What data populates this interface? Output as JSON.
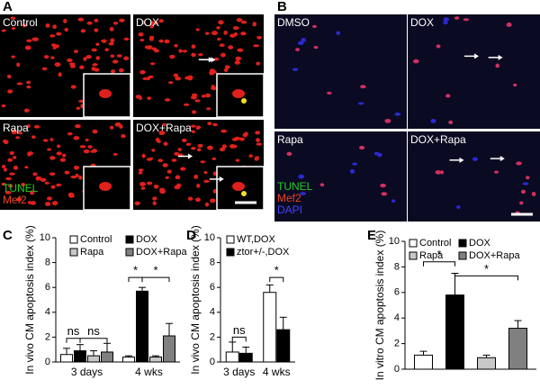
{
  "panel_labels": [
    "A",
    "B",
    "C",
    "D",
    "E"
  ],
  "images": {
    "A": {
      "tiles": [
        "Control",
        "DOX",
        "Rapa",
        "DOX+Rapa"
      ],
      "stains": [
        "TUNEL",
        "Mef2"
      ]
    },
    "B": {
      "tiles": [
        "DMSO",
        "DOX",
        "Rapa",
        "DOX+Rapa"
      ],
      "stains": [
        "TUNEL",
        "Mef2",
        "DAPI"
      ]
    }
  },
  "chart_data": [
    {
      "type": "bar",
      "ylabel": "In vivo CM apoptosis index (%)",
      "categories": [
        "3 days",
        "4 wks"
      ],
      "series": [
        {
          "name": "Control",
          "color": "#ffffff",
          "values": [
            0.6,
            0.4
          ],
          "errors": [
            0.5,
            0.1
          ]
        },
        {
          "name": "DOX",
          "color": "#000000",
          "values": [
            0.9,
            5.7
          ],
          "errors": [
            0.5,
            0.3
          ]
        },
        {
          "name": "Rapa",
          "color": "#c8c8c8",
          "values": [
            0.5,
            0.4
          ],
          "errors": [
            0.4,
            0.1
          ]
        },
        {
          "name": "DOX+Rapa",
          "color": "#808080",
          "values": [
            0.8,
            2.1
          ],
          "errors": [
            0.7,
            1.0
          ]
        }
      ],
      "ylim": [
        0,
        10
      ],
      "yticks": [
        0,
        2,
        4,
        6,
        8,
        10
      ],
      "annotations": [
        "ns",
        "ns",
        "*",
        "*"
      ]
    },
    {
      "type": "bar",
      "ylabel": "In vivo CM apoptosis index (%)",
      "categories": [
        "3 days",
        "4 wks"
      ],
      "series": [
        {
          "name": "WT,DOX",
          "color": "#ffffff",
          "values": [
            0.8,
            5.6
          ],
          "errors": [
            0.8,
            0.6
          ]
        },
        {
          "name": "ztor+/-,DOX",
          "color": "#000000",
          "values": [
            0.7,
            2.6
          ],
          "errors": [
            0.5,
            1.0
          ]
        }
      ],
      "ylim": [
        0,
        10
      ],
      "yticks": [
        0,
        2,
        4,
        6,
        8,
        10
      ],
      "annotations": [
        "ns",
        "*"
      ]
    },
    {
      "type": "bar",
      "ylabel": "In vitro CM apoptosis index (%)",
      "categories": [
        null
      ],
      "series": [
        {
          "name": "Control",
          "color": "#ffffff",
          "values": [
            1.1
          ],
          "errors": [
            0.3
          ]
        },
        {
          "name": "DOX",
          "color": "#000000",
          "values": [
            5.8
          ],
          "errors": [
            1.7
          ]
        },
        {
          "name": "Rapa",
          "color": "#c8c8c8",
          "values": [
            0.9
          ],
          "errors": [
            0.2
          ]
        },
        {
          "name": "DOX+Rapa",
          "color": "#808080",
          "values": [
            3.2
          ],
          "errors": [
            0.6
          ]
        }
      ],
      "ylim": [
        0,
        10
      ],
      "yticks": [
        0,
        2,
        4,
        6,
        8,
        10
      ],
      "annotations": [
        "*",
        "*"
      ]
    }
  ]
}
